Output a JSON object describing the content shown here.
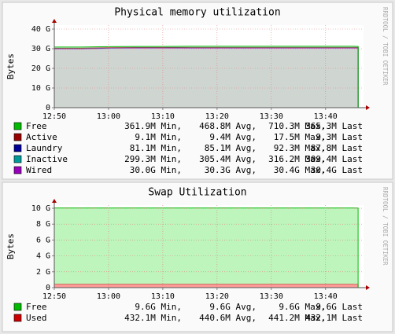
{
  "chart_data": [
    {
      "type": "area",
      "title": "Physical memory utilization",
      "y_label": "Bytes",
      "watermark": "RRDTOOL / TOBI OETIKER",
      "x": [
        "12:50",
        "12:55",
        "13:00",
        "13:05",
        "13:10",
        "13:15",
        "13:20",
        "13:25",
        "13:30",
        "13:35",
        "13:40",
        "13:45",
        "13:46"
      ],
      "xlim": [
        "12:50",
        "13:47"
      ],
      "xticks": [
        "12:50",
        "13:00",
        "13:10",
        "13:20",
        "13:30",
        "13:40"
      ],
      "ylim": [
        0,
        42
      ],
      "yticks": [
        {
          "value": 0,
          "label": "0"
        },
        {
          "value": 10,
          "label": "10 G"
        },
        {
          "value": 20,
          "label": "20 G"
        },
        {
          "value": 30,
          "label": "30 G"
        },
        {
          "value": 40,
          "label": "40 G"
        }
      ],
      "grid": true,
      "series": [
        {
          "name": "Free",
          "color": "#00bb00",
          "fill": "#cfd6d2",
          "values": [
            0.47,
            0.46,
            0.47,
            0.47,
            0.46,
            0.47,
            0.47,
            0.46,
            0.47,
            0.47,
            0.47,
            0.47,
            0.37
          ],
          "stats": [
            "361.9M Min,",
            "468.8M Avg,",
            "710.3M Max,",
            "365.3M Last"
          ]
        },
        {
          "name": "Active",
          "color": "#990000",
          "fill": "#cfd6d2",
          "values": [
            0.0094,
            0.0094,
            0.0094,
            0.0094,
            0.0094,
            0.0094,
            0.0094,
            0.0094,
            0.0094,
            0.0094,
            0.0094,
            0.0094,
            0.0093
          ],
          "stats": [
            "9.1M Min,",
            "9.4M Avg,",
            "17.5M Max,",
            "9.3M Last"
          ]
        },
        {
          "name": "Laundry",
          "color": "#000099",
          "fill": "#cfd6d2",
          "values": [
            0.085,
            0.085,
            0.085,
            0.085,
            0.085,
            0.085,
            0.085,
            0.085,
            0.085,
            0.085,
            0.085,
            0.085,
            0.088
          ],
          "stats": [
            "81.1M Min,",
            "85.1M Avg,",
            "92.3M Max,",
            "87.8M Last"
          ]
        },
        {
          "name": "Inactive",
          "color": "#009999",
          "fill": "#cfd6d2",
          "values": [
            0.31,
            0.31,
            0.3,
            0.3,
            0.31,
            0.3,
            0.3,
            0.3,
            0.3,
            0.3,
            0.3,
            0.3,
            0.3
          ],
          "stats": [
            "299.3M Min,",
            "305.4M Avg,",
            "316.2M Max,",
            "309.4M Last"
          ]
        },
        {
          "name": "Wired",
          "color": "#9900bb",
          "fill": "#cfd6d2",
          "values": [
            30.0,
            30.0,
            30.2,
            30.3,
            30.3,
            30.4,
            30.4,
            30.4,
            30.4,
            30.4,
            30.4,
            30.4,
            30.4
          ],
          "stats": [
            "30.0G Min,",
            "30.3G Avg,",
            "30.4G Max,",
            "30.4G Last"
          ]
        }
      ]
    },
    {
      "type": "area",
      "title": "Swap Utilization",
      "y_label": "Bytes",
      "watermark": "RRDTOOL / TOBI OETIKER",
      "x": [
        "12:50",
        "12:55",
        "13:00",
        "13:05",
        "13:10",
        "13:15",
        "13:20",
        "13:25",
        "13:30",
        "13:35",
        "13:40",
        "13:45",
        "13:46"
      ],
      "xlim": [
        "12:50",
        "13:47"
      ],
      "xticks": [
        "12:50",
        "13:00",
        "13:10",
        "13:20",
        "13:30",
        "13:40"
      ],
      "ylim": [
        0,
        10.4
      ],
      "yticks": [
        {
          "value": 0,
          "label": "0"
        },
        {
          "value": 2,
          "label": "2 G"
        },
        {
          "value": 4,
          "label": "4 G"
        },
        {
          "value": 6,
          "label": "6 G"
        },
        {
          "value": 8,
          "label": "8 G"
        },
        {
          "value": 10,
          "label": "10 G"
        }
      ],
      "grid": true,
      "series": [
        {
          "name": "Free",
          "color": "#00bb00",
          "fill": "#bdf5bd",
          "values": [
            9.6,
            9.6,
            9.6,
            9.6,
            9.6,
            9.6,
            9.6,
            9.6,
            9.6,
            9.6,
            9.6,
            9.6,
            9.6
          ],
          "stats": [
            "9.6G Min,",
            "9.6G Avg,",
            "9.6G Max,",
            "9.6G Last"
          ]
        },
        {
          "name": "Used",
          "color": "#cc0000",
          "fill": "#ff9a9a",
          "values": [
            0.441,
            0.441,
            0.441,
            0.441,
            0.441,
            0.441,
            0.441,
            0.441,
            0.441,
            0.441,
            0.441,
            0.441,
            0.432
          ],
          "stats": [
            "432.1M Min,",
            "440.6M Avg,",
            "441.2M Max,",
            "432.1M Last"
          ]
        }
      ]
    }
  ]
}
